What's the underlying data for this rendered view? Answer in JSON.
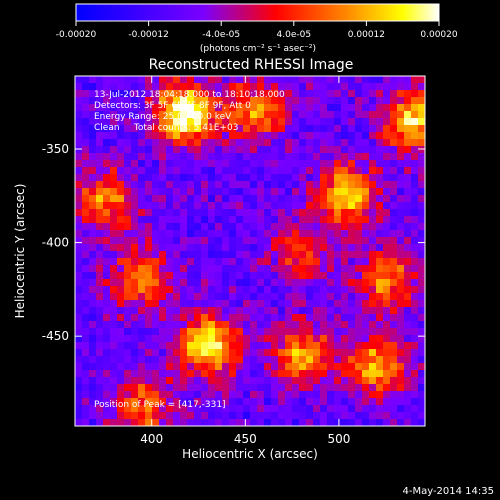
{
  "colorbar": {
    "min": -0.0002,
    "max": 0.0002,
    "tick_labels": [
      "-0.00020",
      "-0.00012",
      "-4.0e-05",
      "4.0e-05",
      "0.00012",
      "0.00020"
    ],
    "tick_values": [
      -0.0002,
      -0.00012,
      -4e-05,
      4e-05,
      0.00012,
      0.0002
    ],
    "unit_label": "(photons cm⁻² s⁻¹ asec⁻²)",
    "colormap": [
      "#0000ff",
      "#7a00ff",
      "#ff0000",
      "#ff8c00",
      "#ffff00",
      "#ffffff"
    ]
  },
  "chart_data": {
    "type": "heatmap",
    "title": "Reconstructed RHESSI Image",
    "xlabel": "Heliocentric X (arcsec)",
    "ylabel": "Heliocentric Y (arcsec)",
    "xlim": [
      359,
      546
    ],
    "ylim": [
      -498,
      -311
    ],
    "x_ticks": [
      400,
      450,
      500
    ],
    "y_ticks": [
      -350,
      -400,
      -450
    ],
    "info_lines": [
      "13-Jul-2012 18:04:18.000 to 18:10:18.000",
      "Detectors: 3F 5F 6F 7F 8F 9F, Att 0",
      "Energy Range: 25.0 - 50.0 keV",
      "Clean     Total counts: 5.41E+03"
    ],
    "peak_label": "Position of Peak = [417,-331]",
    "peak_position": [
      417,
      -331
    ],
    "grid": false,
    "bright_sources": [
      {
        "x": 417,
        "y": -331,
        "intensity": 1.0
      },
      {
        "x": 540,
        "y": -335,
        "intensity": 0.8
      },
      {
        "x": 505,
        "y": -375,
        "intensity": 0.75
      },
      {
        "x": 430,
        "y": -455,
        "intensity": 0.85
      },
      {
        "x": 375,
        "y": -378,
        "intensity": 0.6
      },
      {
        "x": 395,
        "y": -420,
        "intensity": 0.6
      },
      {
        "x": 520,
        "y": -465,
        "intensity": 0.7
      },
      {
        "x": 480,
        "y": -460,
        "intensity": 0.65
      },
      {
        "x": 395,
        "y": -488,
        "intensity": 0.55
      },
      {
        "x": 455,
        "y": -330,
        "intensity": 0.6
      },
      {
        "x": 525,
        "y": -420,
        "intensity": 0.6
      },
      {
        "x": 480,
        "y": -405,
        "intensity": 0.45
      }
    ]
  },
  "footer": {
    "date": "4-May-2014 14:35"
  }
}
